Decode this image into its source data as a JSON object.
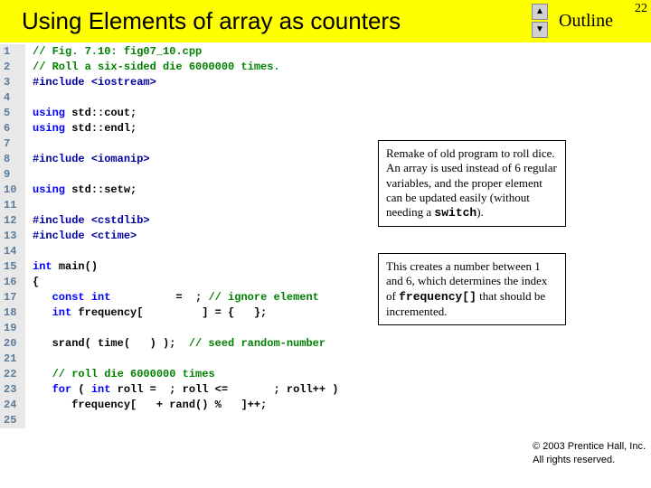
{
  "page_number": "22",
  "outline_label": "Outline",
  "title": "Using Elements of array as counters",
  "code": [
    {
      "n": "1",
      "segs": [
        [
          "c-comment",
          "// Fig. 7.10: fig07_10.cpp"
        ]
      ]
    },
    {
      "n": "2",
      "segs": [
        [
          "c-comment",
          "// Roll a six-sided die 6000000 times."
        ]
      ]
    },
    {
      "n": "3",
      "segs": [
        [
          "c-pre",
          "#include "
        ],
        [
          "c-pre",
          "<iostream>"
        ]
      ]
    },
    {
      "n": "4",
      "segs": []
    },
    {
      "n": "5",
      "segs": [
        [
          "c-kw",
          "using "
        ],
        [
          "c-lit",
          "std::cout;"
        ]
      ]
    },
    {
      "n": "6",
      "segs": [
        [
          "c-kw",
          "using "
        ],
        [
          "c-lit",
          "std::endl;"
        ]
      ]
    },
    {
      "n": "7",
      "segs": []
    },
    {
      "n": "8",
      "segs": [
        [
          "c-pre",
          "#include "
        ],
        [
          "c-pre",
          "<iomanip>"
        ]
      ]
    },
    {
      "n": "9",
      "segs": []
    },
    {
      "n": "10",
      "segs": [
        [
          "c-kw",
          "using "
        ],
        [
          "c-lit",
          "std::setw;"
        ]
      ]
    },
    {
      "n": "11",
      "segs": []
    },
    {
      "n": "12",
      "segs": [
        [
          "c-pre",
          "#include "
        ],
        [
          "c-pre",
          "<cstdlib>"
        ]
      ]
    },
    {
      "n": "13",
      "segs": [
        [
          "c-pre",
          "#include "
        ],
        [
          "c-pre",
          "<ctime>"
        ]
      ]
    },
    {
      "n": "14",
      "segs": []
    },
    {
      "n": "15",
      "segs": [
        [
          "c-kw",
          "int "
        ],
        [
          "c-lit",
          "main()"
        ]
      ]
    },
    {
      "n": "16",
      "segs": [
        [
          "c-lit",
          "{"
        ]
      ]
    },
    {
      "n": "17",
      "segs": [
        [
          "c-lit",
          "   "
        ],
        [
          "c-kw",
          "const int"
        ],
        [
          "c-lit",
          "          =  ; "
        ],
        [
          "c-comment",
          "// ignore element"
        ]
      ]
    },
    {
      "n": "18",
      "segs": [
        [
          "c-lit",
          "   "
        ],
        [
          "c-kw",
          "int "
        ],
        [
          "c-lit",
          "frequency[         ] = {   };"
        ]
      ]
    },
    {
      "n": "19",
      "segs": []
    },
    {
      "n": "20",
      "segs": [
        [
          "c-lit",
          "   srand( time(   ) );  "
        ],
        [
          "c-comment",
          "// seed random-number"
        ]
      ]
    },
    {
      "n": "21",
      "segs": []
    },
    {
      "n": "22",
      "segs": [
        [
          "c-lit",
          "   "
        ],
        [
          "c-comment",
          "// roll die 6000000 times"
        ]
      ]
    },
    {
      "n": "23",
      "segs": [
        [
          "c-lit",
          "   "
        ],
        [
          "c-kw",
          "for "
        ],
        [
          "c-lit",
          "( "
        ],
        [
          "c-kw",
          "int "
        ],
        [
          "c-lit",
          "roll =  ; roll <=       ; roll++ )"
        ]
      ]
    },
    {
      "n": "24",
      "segs": [
        [
          "c-lit",
          "      frequency[   + rand() %   ]++;"
        ]
      ]
    },
    {
      "n": "25",
      "segs": []
    }
  ],
  "callout1": {
    "text_a": "Remake of old program to roll dice. An array is used instead of 6 regular variables, and the proper element can be updated easily (without needing a ",
    "mono": "switch",
    "text_b": ")."
  },
  "callout2": {
    "text_a": "This creates a number between 1 and 6, which determines the index of ",
    "mono": "frequency[]",
    "text_b": " that should be incremented."
  },
  "footer": {
    "line1": "© 2003 Prentice Hall, Inc.",
    "line2": "All rights reserved."
  },
  "colors": {
    "highlight": "#ffff00",
    "lineno": "#5b7b9b",
    "lineno_bg": "#e8e8e8",
    "comment": "#008000",
    "preproc": "#0000a0",
    "keyword": "#0000ff"
  }
}
